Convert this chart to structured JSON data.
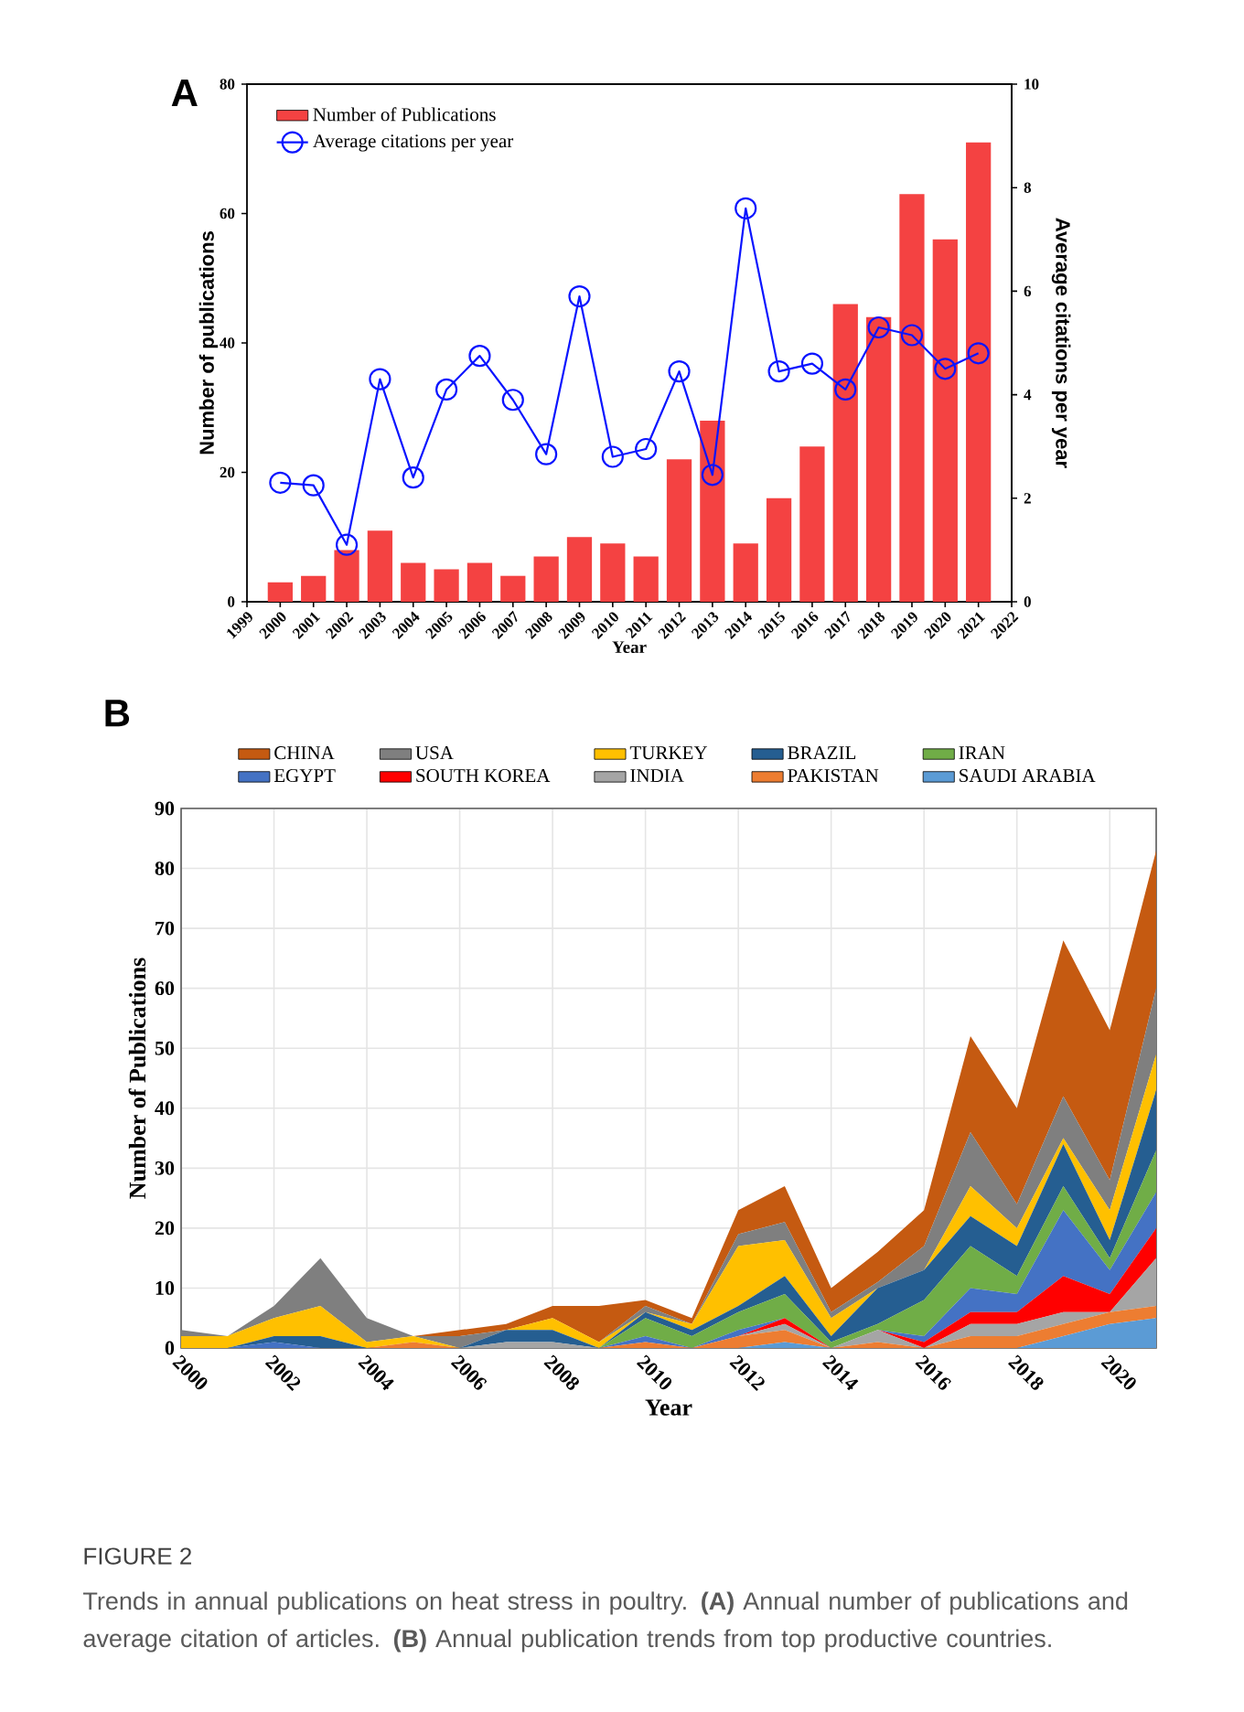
{
  "chart_data": [
    {
      "type": "bar",
      "title": "A",
      "xlabel": "Year",
      "ylabel": "Number of publications",
      "y2label": "Average citations per year",
      "x": [
        2000,
        2001,
        2002,
        2003,
        2004,
        2005,
        2006,
        2007,
        2008,
        2009,
        2010,
        2011,
        2012,
        2013,
        2014,
        2015,
        2016,
        2017,
        2018,
        2019,
        2020,
        2021
      ],
      "xlim": [
        1999,
        2022
      ],
      "xticks": [
        1999,
        2000,
        2001,
        2002,
        2003,
        2004,
        2005,
        2006,
        2007,
        2008,
        2009,
        2010,
        2011,
        2012,
        2013,
        2014,
        2015,
        2016,
        2017,
        2018,
        2019,
        2020,
        2021,
        2022
      ],
      "ylim": [
        0,
        80
      ],
      "yticks": [
        0,
        20,
        40,
        60,
        80
      ],
      "y2lim": [
        0,
        10
      ],
      "y2ticks": [
        0,
        2,
        4,
        6,
        8,
        10
      ],
      "legend": "top left",
      "series": [
        {
          "name": "Number of Publications",
          "type": "bar",
          "color": "#f44242",
          "values": [
            3,
            4,
            8,
            11,
            6,
            5,
            6,
            4,
            7,
            10,
            9,
            7,
            22,
            28,
            9,
            16,
            24,
            46,
            44,
            63,
            56,
            71
          ]
        },
        {
          "name": "Average citations per year",
          "type": "line",
          "axis": "y2",
          "color": "#0a14ff",
          "marker": "circle",
          "values": [
            2.3,
            2.25,
            1.1,
            4.3,
            2.4,
            4.1,
            4.75,
            3.9,
            2.85,
            5.9,
            2.8,
            2.95,
            4.45,
            2.45,
            7.6,
            4.45,
            4.6,
            4.1,
            5.3,
            5.15,
            4.5,
            4.8
          ]
        }
      ]
    },
    {
      "type": "area",
      "stacked": true,
      "title": "B",
      "xlabel": "Year",
      "ylabel": "Number of Publications",
      "x": [
        2000,
        2001,
        2002,
        2003,
        2004,
        2005,
        2006,
        2007,
        2008,
        2009,
        2010,
        2011,
        2012,
        2013,
        2014,
        2015,
        2016,
        2017,
        2018,
        2019,
        2020,
        2021
      ],
      "xlim": [
        2000,
        2021
      ],
      "xticks": [
        2000,
        2002,
        2004,
        2006,
        2008,
        2010,
        2012,
        2014,
        2016,
        2018,
        2020
      ],
      "ylim": [
        0,
        90
      ],
      "yticks": [
        0,
        10,
        20,
        30,
        40,
        50,
        60,
        70,
        80,
        90
      ],
      "grid": true,
      "legend": "top",
      "series": [
        {
          "name": "SAUDI ARABIA",
          "color": "#5b9bd5",
          "values": [
            0,
            0,
            0,
            0,
            0,
            0,
            0,
            0,
            0,
            0,
            0,
            0,
            0,
            1,
            0,
            0,
            0,
            0,
            0,
            2,
            4,
            5
          ]
        },
        {
          "name": "PAKISTAN",
          "color": "#ed7d31",
          "values": [
            0,
            0,
            0,
            0,
            0,
            1,
            0,
            0,
            0,
            0,
            1,
            0,
            2,
            2,
            0,
            1,
            0,
            2,
            2,
            2,
            2,
            2
          ]
        },
        {
          "name": "INDIA",
          "color": "#a5a5a5",
          "values": [
            0,
            0,
            0,
            0,
            0,
            0,
            0,
            1,
            1,
            0,
            0,
            0,
            0,
            1,
            0,
            2,
            0,
            2,
            2,
            2,
            0,
            8
          ]
        },
        {
          "name": "SOUTH KOREA",
          "color": "#ff0000",
          "values": [
            0,
            0,
            0,
            0,
            0,
            0,
            0,
            0,
            0,
            0,
            0,
            0,
            0,
            1,
            0,
            0,
            1,
            2,
            2,
            6,
            3,
            5
          ]
        },
        {
          "name": "EGYPT",
          "color": "#4472c4",
          "values": [
            0,
            0,
            1,
            0,
            0,
            0,
            0,
            0,
            0,
            0,
            1,
            0,
            1,
            0,
            0,
            0,
            1,
            4,
            3,
            11,
            4,
            6
          ]
        },
        {
          "name": "IRAN",
          "color": "#70ad47",
          "values": [
            0,
            0,
            0,
            0,
            0,
            0,
            0,
            0,
            0,
            0,
            3,
            2,
            3,
            4,
            1,
            1,
            6,
            7,
            3,
            4,
            2,
            7
          ]
        },
        {
          "name": "BRAZIL",
          "color": "#255e91",
          "values": [
            0,
            0,
            1,
            2,
            0,
            0,
            0,
            2,
            2,
            0,
            1,
            1,
            1,
            3,
            1,
            6,
            5,
            5,
            5,
            7,
            3,
            10
          ]
        },
        {
          "name": "TURKEY",
          "color": "#ffc000",
          "values": [
            2,
            2,
            3,
            5,
            1,
            1,
            0,
            0,
            2,
            1,
            0,
            1,
            10,
            6,
            3,
            0,
            0,
            5,
            3,
            1,
            5,
            6
          ]
        },
        {
          "name": "USA",
          "color": "#7f7f7f",
          "values": [
            1,
            0,
            2,
            8,
            4,
            0,
            2,
            0,
            0,
            0,
            1,
            0,
            2,
            3,
            1,
            1,
            4,
            9,
            4,
            7,
            5,
            11
          ]
        },
        {
          "name": "CHINA",
          "color": "#c55a11",
          "values": [
            0,
            0,
            0,
            0,
            0,
            0,
            1,
            1,
            2,
            6,
            1,
            1,
            4,
            6,
            4,
            5,
            6,
            16,
            16,
            26,
            25,
            23
          ]
        }
      ],
      "annotations": [
        "FIGURE 2",
        "Trends in annual publications on heat stress in poultry. **(A)** Annual number of publications and average citation of articles. **(B)** Annual publication trends from top productive countries."
      ]
    }
  ]
}
